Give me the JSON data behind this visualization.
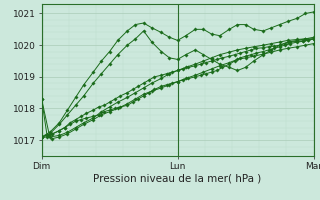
{
  "xlabel": "Pression niveau de la mer( hPa )",
  "bg_color": "#cce8dc",
  "grid_major_color": "#aaccb8",
  "grid_minor_color": "#bbddcc",
  "line_color": "#1a6b1a",
  "ylim": [
    1016.5,
    1021.3
  ],
  "yticks": [
    1017,
    1018,
    1019,
    1020,
    1021
  ],
  "xlim": [
    0,
    2.0
  ],
  "xtick_labels": [
    "Dim",
    "Lun",
    "Mar"
  ],
  "xtick_positions": [
    0,
    1.0,
    2.0
  ],
  "series": [
    {
      "x": [
        0.0,
        0.04,
        0.08,
        0.13,
        0.17,
        0.21,
        0.25,
        0.29,
        0.33,
        0.38,
        0.42,
        0.46,
        0.5,
        0.54,
        0.58,
        0.63,
        0.67,
        0.71,
        0.75,
        0.79,
        0.83,
        0.88,
        0.92,
        0.96,
        1.0,
        1.04,
        1.08,
        1.13,
        1.17,
        1.21,
        1.25,
        1.29,
        1.33,
        1.38,
        1.42,
        1.46,
        1.5,
        1.54,
        1.58,
        1.63,
        1.67,
        1.71,
        1.75,
        1.79,
        1.83,
        1.88,
        1.92,
        1.96,
        2.0
      ],
      "y": [
        1017.1,
        1017.1,
        1017.2,
        1017.3,
        1017.4,
        1017.5,
        1017.6,
        1017.65,
        1017.7,
        1017.75,
        1017.8,
        1017.9,
        1017.95,
        1018.0,
        1018.05,
        1018.1,
        1018.2,
        1018.3,
        1018.4,
        1018.5,
        1018.6,
        1018.7,
        1018.75,
        1018.8,
        1018.85,
        1018.9,
        1018.95,
        1019.0,
        1019.05,
        1019.1,
        1019.15,
        1019.2,
        1019.3,
        1019.4,
        1019.5,
        1019.6,
        1019.65,
        1019.7,
        1019.75,
        1019.8,
        1019.85,
        1019.9,
        1019.95,
        1020.0,
        1020.05,
        1020.1,
        1020.12,
        1020.15,
        1020.2
      ]
    },
    {
      "x": [
        0.0,
        0.04,
        0.08,
        0.13,
        0.17,
        0.21,
        0.25,
        0.29,
        0.33,
        0.38,
        0.42,
        0.46,
        0.5,
        0.54,
        0.58,
        0.63,
        0.67,
        0.71,
        0.75,
        0.79,
        0.83,
        0.88,
        0.92,
        0.96,
        1.0,
        1.04,
        1.08,
        1.13,
        1.17,
        1.21,
        1.25,
        1.29,
        1.33,
        1.38,
        1.42,
        1.46,
        1.5,
        1.54,
        1.58,
        1.63,
        1.67,
        1.71,
        1.75,
        1.79,
        1.83,
        1.88,
        1.92,
        1.96,
        2.0
      ],
      "y": [
        1017.1,
        1017.15,
        1017.2,
        1017.3,
        1017.4,
        1017.55,
        1017.65,
        1017.75,
        1017.85,
        1017.95,
        1018.05,
        1018.1,
        1018.2,
        1018.3,
        1018.4,
        1018.5,
        1018.6,
        1018.7,
        1018.8,
        1018.9,
        1019.0,
        1019.05,
        1019.1,
        1019.15,
        1019.2,
        1019.25,
        1019.3,
        1019.35,
        1019.4,
        1019.45,
        1019.5,
        1019.55,
        1019.6,
        1019.65,
        1019.7,
        1019.75,
        1019.8,
        1019.85,
        1019.9,
        1019.92,
        1019.95,
        1019.97,
        1020.0,
        1020.05,
        1020.1,
        1020.12,
        1020.14,
        1020.17,
        1020.2
      ]
    },
    {
      "x": [
        0.0,
        0.04,
        0.08,
        0.13,
        0.19,
        0.25,
        0.31,
        0.38,
        0.44,
        0.5,
        0.56,
        0.63,
        0.69,
        0.75,
        0.81,
        0.88,
        0.94,
        1.0,
        1.06,
        1.13,
        1.19,
        1.25,
        1.31,
        1.38,
        1.44,
        1.5,
        1.56,
        1.63,
        1.69,
        1.75,
        1.81,
        1.88,
        1.94,
        2.0
      ],
      "y": [
        1018.3,
        1017.15,
        1017.05,
        1017.1,
        1017.2,
        1017.35,
        1017.5,
        1017.65,
        1017.8,
        1017.9,
        1018.0,
        1018.15,
        1018.3,
        1018.45,
        1018.55,
        1018.65,
        1018.75,
        1018.85,
        1018.95,
        1019.05,
        1019.15,
        1019.25,
        1019.35,
        1019.45,
        1019.55,
        1019.6,
        1019.65,
        1019.72,
        1019.78,
        1019.85,
        1019.9,
        1019.95,
        1020.0,
        1020.05
      ]
    },
    {
      "x": [
        0.0,
        0.06,
        0.13,
        0.19,
        0.25,
        0.31,
        0.38,
        0.44,
        0.5,
        0.56,
        0.63,
        0.69,
        0.75,
        0.81,
        0.88,
        0.94,
        1.0,
        1.06,
        1.13,
        1.19,
        1.25,
        1.31,
        1.38,
        1.44,
        1.5,
        1.56,
        1.63,
        1.69,
        1.75,
        1.81,
        1.88,
        1.94,
        2.0
      ],
      "y": [
        1018.3,
        1017.1,
        1017.15,
        1017.25,
        1017.4,
        1017.55,
        1017.7,
        1017.9,
        1018.05,
        1018.2,
        1018.35,
        1018.5,
        1018.65,
        1018.8,
        1018.95,
        1019.1,
        1019.2,
        1019.3,
        1019.4,
        1019.5,
        1019.6,
        1019.7,
        1019.78,
        1019.85,
        1019.9,
        1019.95,
        1020.0,
        1020.05,
        1020.1,
        1020.15,
        1020.18,
        1020.2,
        1020.25
      ]
    },
    {
      "x": [
        0.0,
        0.06,
        0.13,
        0.19,
        0.25,
        0.31,
        0.38,
        0.44,
        0.5,
        0.56,
        0.63,
        0.69,
        0.75,
        0.81,
        0.88,
        0.94,
        1.0,
        1.06,
        1.13,
        1.19,
        1.25,
        1.31,
        1.38,
        1.44,
        1.5,
        1.56,
        1.63,
        1.69,
        1.75,
        1.81,
        1.88,
        1.94,
        2.0
      ],
      "y": [
        1017.1,
        1017.2,
        1017.5,
        1017.8,
        1018.1,
        1018.4,
        1018.8,
        1019.1,
        1019.4,
        1019.7,
        1020.0,
        1020.2,
        1020.45,
        1020.1,
        1019.8,
        1019.6,
        1019.55,
        1019.7,
        1019.85,
        1019.7,
        1019.55,
        1019.4,
        1019.3,
        1019.2,
        1019.3,
        1019.5,
        1019.7,
        1019.85,
        1020.0,
        1020.1,
        1020.15,
        1020.2,
        1020.2
      ]
    },
    {
      "x": [
        0.0,
        0.06,
        0.13,
        0.19,
        0.25,
        0.31,
        0.38,
        0.44,
        0.5,
        0.56,
        0.63,
        0.69,
        0.75,
        0.81,
        0.88,
        0.94,
        1.0,
        1.06,
        1.13,
        1.19,
        1.25,
        1.31,
        1.38,
        1.44,
        1.5,
        1.56,
        1.63,
        1.69,
        1.75,
        1.81,
        1.88,
        1.94,
        2.0
      ],
      "y": [
        1017.1,
        1017.25,
        1017.55,
        1017.95,
        1018.35,
        1018.75,
        1019.15,
        1019.5,
        1019.8,
        1020.15,
        1020.45,
        1020.65,
        1020.7,
        1020.55,
        1020.4,
        1020.25,
        1020.15,
        1020.3,
        1020.5,
        1020.5,
        1020.35,
        1020.3,
        1020.5,
        1020.65,
        1020.65,
        1020.5,
        1020.45,
        1020.55,
        1020.65,
        1020.75,
        1020.85,
        1021.0,
        1021.05
      ]
    }
  ]
}
